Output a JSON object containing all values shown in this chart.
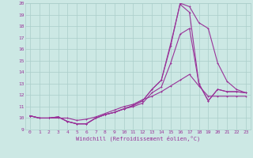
{
  "xlabel": "Windchill (Refroidissement éolien,°C)",
  "bg_color": "#cce8e4",
  "grid_color": "#aaceca",
  "line_color": "#993399",
  "xlim": [
    -0.5,
    23.5
  ],
  "ylim": [
    9,
    20
  ],
  "xticks": [
    0,
    1,
    2,
    3,
    4,
    5,
    6,
    7,
    8,
    9,
    10,
    11,
    12,
    13,
    14,
    15,
    16,
    17,
    18,
    19,
    20,
    21,
    22,
    23
  ],
  "yticks": [
    9,
    10,
    11,
    12,
    13,
    14,
    15,
    16,
    17,
    18,
    19,
    20
  ],
  "line1_x": [
    0,
    1,
    2,
    3,
    4,
    5,
    6,
    7,
    8,
    9,
    10,
    11,
    12,
    13,
    14,
    15,
    16,
    17,
    18,
    19,
    20,
    21,
    22,
    23
  ],
  "line1_y": [
    10.2,
    10.0,
    10.0,
    10.1,
    9.7,
    9.5,
    9.5,
    10.0,
    10.3,
    10.5,
    10.8,
    11.1,
    11.5,
    12.5,
    13.3,
    16.5,
    19.9,
    19.2,
    13.0,
    11.5,
    12.5,
    12.3,
    12.3,
    12.2
  ],
  "line2_x": [
    0,
    1,
    2,
    3,
    4,
    5,
    6,
    7,
    8,
    9,
    10,
    11,
    12,
    13,
    14,
    15,
    16,
    17,
    18,
    19,
    20,
    21,
    22,
    23
  ],
  "line2_y": [
    10.2,
    10.0,
    10.0,
    10.1,
    9.7,
    9.5,
    9.5,
    10.0,
    10.3,
    10.5,
    10.8,
    11.1,
    11.5,
    12.5,
    13.3,
    16.3,
    20.0,
    19.7,
    18.3,
    17.8,
    14.8,
    13.2,
    12.5,
    12.2
  ],
  "line3_x": [
    0,
    1,
    2,
    3,
    4,
    5,
    6,
    7,
    8,
    9,
    10,
    11,
    12,
    13,
    14,
    15,
    16,
    17,
    18,
    19,
    20,
    21,
    22,
    23
  ],
  "line3_y": [
    10.2,
    10.0,
    10.0,
    10.1,
    9.7,
    9.5,
    9.5,
    10.0,
    10.3,
    10.5,
    10.8,
    11.0,
    11.3,
    12.2,
    12.7,
    14.8,
    17.3,
    17.8,
    13.0,
    11.5,
    12.5,
    12.3,
    12.3,
    12.2
  ],
  "line4_x": [
    0,
    1,
    2,
    3,
    4,
    5,
    6,
    7,
    8,
    9,
    10,
    11,
    12,
    13,
    14,
    15,
    16,
    17,
    18,
    19,
    20,
    21,
    22,
    23
  ],
  "line4_y": [
    10.2,
    10.0,
    10.0,
    10.0,
    10.0,
    9.8,
    9.9,
    10.1,
    10.4,
    10.7,
    11.0,
    11.2,
    11.6,
    11.9,
    12.3,
    12.8,
    13.3,
    13.8,
    12.8,
    11.9,
    11.9,
    11.9,
    11.9,
    11.9
  ]
}
